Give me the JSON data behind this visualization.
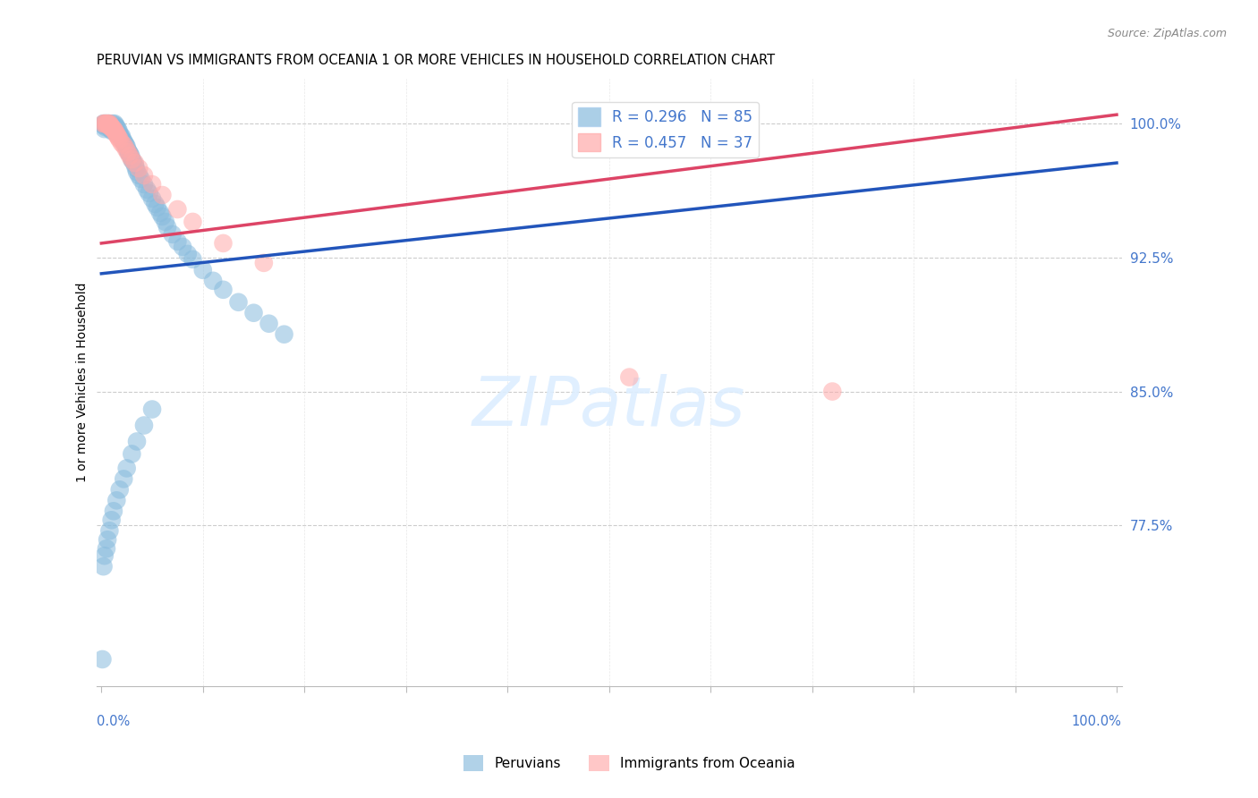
{
  "title": "PERUVIAN VS IMMIGRANTS FROM OCEANIA 1 OR MORE VEHICLES IN HOUSEHOLD CORRELATION CHART",
  "source": "Source: ZipAtlas.com",
  "ylabel": "1 or more Vehicles in Household",
  "ytick_values": [
    0.775,
    0.85,
    0.925,
    1.0
  ],
  "ytick_labels": [
    "77.5%",
    "85.0%",
    "92.5%",
    "100.0%"
  ],
  "xlim": [
    -0.005,
    1.005
  ],
  "ylim": [
    0.685,
    1.025
  ],
  "blue_color": "#88BBDD",
  "pink_color": "#FFAAAA",
  "blue_line_color": "#2255BB",
  "pink_line_color": "#DD4466",
  "blue_label": "R = 0.296   N = 85",
  "pink_label": "R = 0.457   N = 37",
  "legend_blue": "Peruvians",
  "legend_pink": "Immigrants from Oceania",
  "blue_line_x": [
    0.0,
    1.0
  ],
  "blue_line_y": [
    0.916,
    0.978
  ],
  "pink_line_x": [
    0.0,
    1.0
  ],
  "pink_line_y": [
    0.933,
    1.005
  ],
  "watermark_color": "#DDEEFF",
  "axis_color": "#4477CC",
  "grid_color": "#CCCCCC",
  "blue_x": [
    0.001,
    0.002,
    0.002,
    0.003,
    0.003,
    0.004,
    0.004,
    0.005,
    0.005,
    0.006,
    0.006,
    0.007,
    0.007,
    0.007,
    0.008,
    0.008,
    0.009,
    0.009,
    0.01,
    0.01,
    0.011,
    0.011,
    0.012,
    0.013,
    0.013,
    0.014,
    0.015,
    0.016,
    0.017,
    0.018,
    0.019,
    0.02,
    0.021,
    0.022,
    0.023,
    0.024,
    0.025,
    0.026,
    0.027,
    0.028,
    0.029,
    0.03,
    0.031,
    0.033,
    0.034,
    0.035,
    0.037,
    0.039,
    0.042,
    0.045,
    0.047,
    0.05,
    0.053,
    0.055,
    0.058,
    0.06,
    0.063,
    0.065,
    0.07,
    0.075,
    0.08,
    0.085,
    0.09,
    0.1,
    0.11,
    0.12,
    0.135,
    0.15,
    0.165,
    0.18,
    0.002,
    0.003,
    0.005,
    0.006,
    0.008,
    0.01,
    0.012,
    0.015,
    0.018,
    0.022,
    0.025,
    0.03,
    0.035,
    0.042,
    0.05
  ],
  "blue_y": [
    0.7,
    0.999,
    1.0,
    0.997,
    1.0,
    0.998,
    1.0,
    0.999,
    1.0,
    0.999,
    1.0,
    0.998,
    0.999,
    1.0,
    0.998,
    1.0,
    0.997,
    0.999,
    0.996,
    0.999,
    0.996,
    1.0,
    0.997,
    0.998,
    1.0,
    0.999,
    0.998,
    0.997,
    0.996,
    0.994,
    0.993,
    0.993,
    0.991,
    0.99,
    0.989,
    0.988,
    0.987,
    0.985,
    0.984,
    0.983,
    0.982,
    0.98,
    0.979,
    0.977,
    0.975,
    0.973,
    0.971,
    0.969,
    0.966,
    0.963,
    0.961,
    0.958,
    0.955,
    0.953,
    0.95,
    0.948,
    0.945,
    0.942,
    0.938,
    0.934,
    0.931,
    0.927,
    0.924,
    0.918,
    0.912,
    0.907,
    0.9,
    0.894,
    0.888,
    0.882,
    0.752,
    0.758,
    0.762,
    0.767,
    0.772,
    0.778,
    0.783,
    0.789,
    0.795,
    0.801,
    0.807,
    0.815,
    0.822,
    0.831,
    0.84
  ],
  "pink_x": [
    0.002,
    0.003,
    0.004,
    0.005,
    0.006,
    0.007,
    0.007,
    0.008,
    0.008,
    0.009,
    0.009,
    0.01,
    0.011,
    0.012,
    0.013,
    0.014,
    0.015,
    0.016,
    0.017,
    0.018,
    0.02,
    0.022,
    0.024,
    0.026,
    0.028,
    0.03,
    0.033,
    0.037,
    0.042,
    0.05,
    0.06,
    0.075,
    0.09,
    0.12,
    0.16,
    0.52,
    0.72
  ],
  "pink_y": [
    1.0,
    1.0,
    1.0,
    1.0,
    1.0,
    1.0,
    0.999,
    0.999,
    1.0,
    0.998,
    0.999,
    0.998,
    0.997,
    0.997,
    0.996,
    0.995,
    0.994,
    0.993,
    0.992,
    0.991,
    0.989,
    0.988,
    0.986,
    0.984,
    0.982,
    0.98,
    0.978,
    0.975,
    0.971,
    0.966,
    0.96,
    0.952,
    0.945,
    0.933,
    0.922,
    0.858,
    0.85
  ]
}
